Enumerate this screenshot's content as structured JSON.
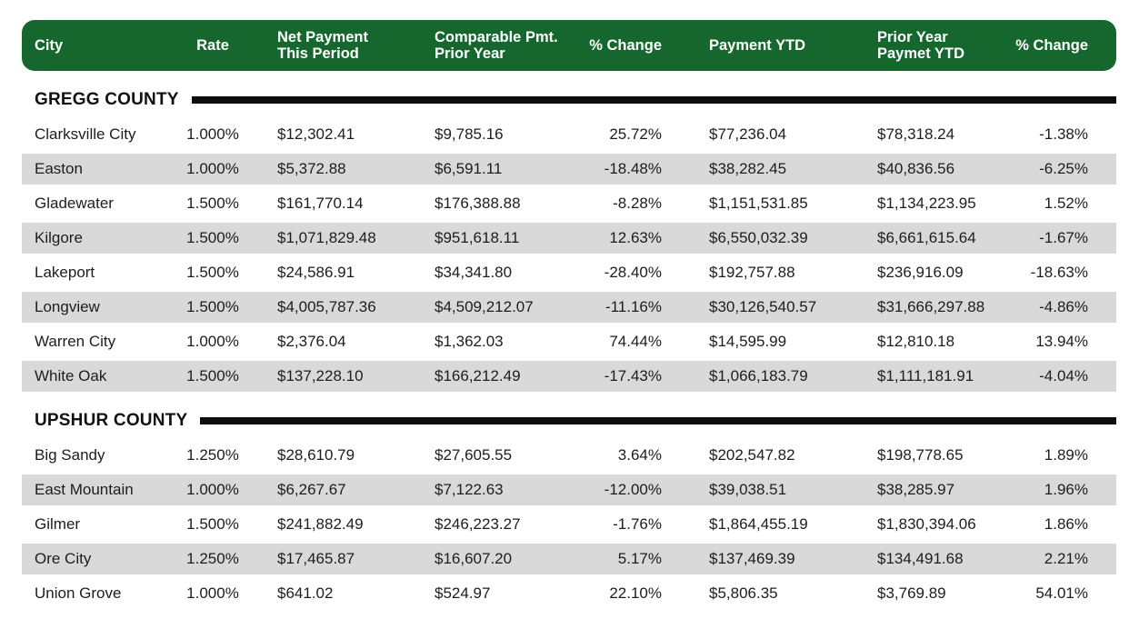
{
  "colors": {
    "header_green": "#15672e",
    "stripe_gray": "#d9d9d9",
    "rule_black": "#0d0d0d",
    "header_text": "#ffffff",
    "body_text": "#1d1d1b"
  },
  "table": {
    "columns": [
      {
        "id": "city",
        "label": "City"
      },
      {
        "id": "rate",
        "label": "Rate"
      },
      {
        "id": "net_payment",
        "label": "Net Payment\nThis Period"
      },
      {
        "id": "comparable_pmt",
        "label": "Comparable Pmt.\nPrior Year"
      },
      {
        "id": "pct_change_period",
        "label": "% Change"
      },
      {
        "id": "payment_ytd",
        "label": "Payment YTD"
      },
      {
        "id": "prior_year_ytd",
        "label": "Prior Year\nPaymet YTD"
      },
      {
        "id": "pct_change_ytd",
        "label": "% Change"
      }
    ],
    "sections": [
      {
        "name": "GREGG COUNTY",
        "rows": [
          {
            "city": "Clarksville City",
            "rate": "1.000%",
            "net": "$12,302.41",
            "comp": "$9,785.16",
            "chg1": "25.72%",
            "ytd": "$77,236.04",
            "prior": "$78,318.24",
            "chg2": "-1.38%"
          },
          {
            "city": "Easton",
            "rate": "1.000%",
            "net": "$5,372.88",
            "comp": "$6,591.11",
            "chg1": "-18.48%",
            "ytd": "$38,282.45",
            "prior": "$40,836.56",
            "chg2": "-6.25%"
          },
          {
            "city": "Gladewater",
            "rate": "1.500%",
            "net": "$161,770.14",
            "comp": "$176,388.88",
            "chg1": "-8.28%",
            "ytd": "$1,151,531.85",
            "prior": "$1,134,223.95",
            "chg2": "1.52%"
          },
          {
            "city": "Kilgore",
            "rate": "1.500%",
            "net": "$1,071,829.48",
            "comp": "$951,618.11",
            "chg1": "12.63%",
            "ytd": "$6,550,032.39",
            "prior": "$6,661,615.64",
            "chg2": "-1.67%"
          },
          {
            "city": "Lakeport",
            "rate": "1.500%",
            "net": "$24,586.91",
            "comp": "$34,341.80",
            "chg1": "-28.40%",
            "ytd": "$192,757.88",
            "prior": "$236,916.09",
            "chg2": "-18.63%"
          },
          {
            "city": "Longview",
            "rate": "1.500%",
            "net": "$4,005,787.36",
            "comp": "$4,509,212.07",
            "chg1": "-11.16%",
            "ytd": "$30,126,540.57",
            "prior": "$31,666,297.88",
            "chg2": "-4.86%"
          },
          {
            "city": "Warren City",
            "rate": "1.000%",
            "net": "$2,376.04",
            "comp": "$1,362.03",
            "chg1": "74.44%",
            "ytd": "$14,595.99",
            "prior": "$12,810.18",
            "chg2": "13.94%"
          },
          {
            "city": "White Oak",
            "rate": "1.500%",
            "net": "$137,228.10",
            "comp": "$166,212.49",
            "chg1": "-17.43%",
            "ytd": "$1,066,183.79",
            "prior": "$1,111,181.91",
            "chg2": "-4.04%"
          }
        ]
      },
      {
        "name": "UPSHUR COUNTY",
        "rows": [
          {
            "city": "Big Sandy",
            "rate": "1.250%",
            "net": "$28,610.79",
            "comp": "$27,605.55",
            "chg1": "3.64%",
            "ytd": "$202,547.82",
            "prior": "$198,778.65",
            "chg2": "1.89%"
          },
          {
            "city": "East Mountain",
            "rate": "1.000%",
            "net": "$6,267.67",
            "comp": "$7,122.63",
            "chg1": "-12.00%",
            "ytd": "$39,038.51",
            "prior": "$38,285.97",
            "chg2": "1.96%"
          },
          {
            "city": "Gilmer",
            "rate": "1.500%",
            "net": "$241,882.49",
            "comp": "$246,223.27",
            "chg1": "-1.76%",
            "ytd": "$1,864,455.19",
            "prior": "$1,830,394.06",
            "chg2": "1.86%"
          },
          {
            "city": "Ore City",
            "rate": "1.250%",
            "net": "$17,465.87",
            "comp": "$16,607.20",
            "chg1": "5.17%",
            "ytd": "$137,469.39",
            "prior": "$134,491.68",
            "chg2": "2.21%"
          },
          {
            "city": "Union Grove",
            "rate": "1.000%",
            "net": "$641.02",
            "comp": "$524.97",
            "chg1": "22.10%",
            "ytd": "$5,806.35",
            "prior": "$3,769.89",
            "chg2": "54.01%"
          }
        ]
      }
    ]
  }
}
